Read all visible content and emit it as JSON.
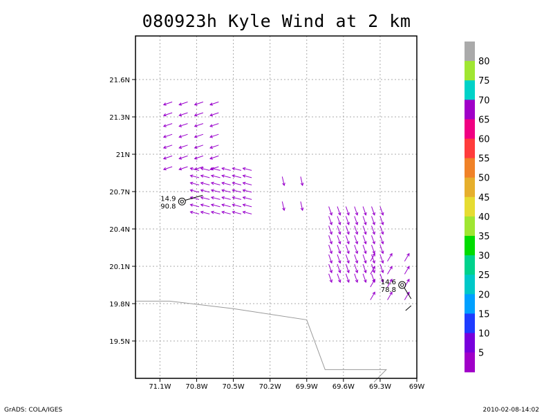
{
  "title": "080923h Kyle Wind at 2 km",
  "footer": {
    "left": "GrADS: COLA/IGES",
    "right": "2010-02-08-14:02"
  },
  "colors": {
    "vector": "#9900cc",
    "grid": "#aaaaaa",
    "coast": "#999999"
  },
  "chart_data": {
    "type": "vector-field",
    "title": "080923h Kyle Wind at 2 km",
    "xlim": [
      -71.3,
      -69.0
    ],
    "ylim": [
      19.2,
      21.95
    ],
    "grid": true,
    "x_ticks": [
      {
        "value": -71.1,
        "label": "71.1W"
      },
      {
        "value": -70.8,
        "label": "70.8W"
      },
      {
        "value": -70.5,
        "label": "70.5W"
      },
      {
        "value": -70.2,
        "label": "70.2W"
      },
      {
        "value": -69.9,
        "label": "69.9W"
      },
      {
        "value": -69.6,
        "label": "69.6W"
      },
      {
        "value": -69.3,
        "label": "69.3W"
      },
      {
        "value": -69.0,
        "label": "69W"
      }
    ],
    "y_ticks": [
      {
        "value": 21.6,
        "label": "21.6N"
      },
      {
        "value": 21.3,
        "label": "21.3N"
      },
      {
        "value": 21.0,
        "label": "21N"
      },
      {
        "value": 20.7,
        "label": "20.7N"
      },
      {
        "value": 20.4,
        "label": "20.4N"
      },
      {
        "value": 20.1,
        "label": "20.1N"
      },
      {
        "value": 19.8,
        "label": "19.8N"
      },
      {
        "value": 19.5,
        "label": "19.5N"
      }
    ],
    "colorbar": {
      "labels": [
        "80",
        "75",
        "70",
        "65",
        "60",
        "55",
        "50",
        "45",
        "40",
        "35",
        "30",
        "25",
        "20",
        "15",
        "10",
        "5"
      ],
      "colors": [
        "#aaaaaa",
        "#a0e632",
        "#00d2c8",
        "#a000c8",
        "#f00082",
        "#ff3c3c",
        "#f08228",
        "#e6af2d",
        "#e6dc32",
        "#a0e632",
        "#00dc00",
        "#00d28c",
        "#00c8c8",
        "#00a0ff",
        "#1e3cff",
        "#7800dc",
        "#a000c8"
      ]
    },
    "storm_positions": [
      {
        "lon": -70.92,
        "lat": 20.62,
        "labels": [
          "14.9",
          "90.8"
        ]
      },
      {
        "lon": -69.12,
        "lat": 19.95,
        "labels": [
          "14.6",
          "78.8"
        ]
      }
    ],
    "coastline": [
      [
        -71.3,
        19.82
      ],
      [
        -71.02,
        19.82
      ],
      [
        -70.5,
        19.76
      ],
      [
        -69.9,
        19.67
      ],
      [
        -69.75,
        19.27
      ],
      [
        -69.25,
        19.27
      ],
      [
        -69.35,
        19.17
      ]
    ],
    "vector_clusters": [
      {
        "name": "NW band",
        "lon0": -71.0,
        "lon1": -70.62,
        "lat0": 20.9,
        "lat1": 21.42,
        "nx": 4,
        "ny": 7,
        "u": -0.9,
        "v": -0.3
      },
      {
        "name": "inner core west",
        "lon0": -70.78,
        "lon1": -70.35,
        "lat0": 20.52,
        "lat1": 20.87,
        "nx": 6,
        "ny": 7,
        "u": -1.0,
        "v": 0.25
      },
      {
        "name": "scattered",
        "lon0": -70.1,
        "lon1": -69.95,
        "lat0": 20.62,
        "lat1": 20.82,
        "nx": 2,
        "ny": 2,
        "u": 0.2,
        "v": -0.9
      },
      {
        "name": "inner core east",
        "lon0": -69.72,
        "lon1": -69.3,
        "lat0": 20.04,
        "lat1": 20.58,
        "nx": 7,
        "ny": 8,
        "u": 0.35,
        "v": -1.0
      },
      {
        "name": "SE fringe",
        "lon0": -69.38,
        "lon1": -69.1,
        "lat0": 19.83,
        "lat1": 20.14,
        "nx": 3,
        "ny": 4,
        "u": 0.5,
        "v": 0.85
      }
    ]
  }
}
